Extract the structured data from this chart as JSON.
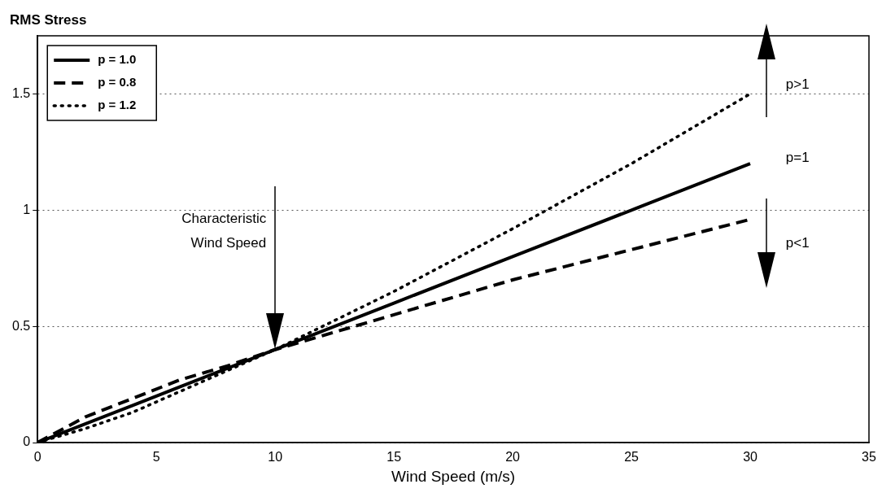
{
  "chart_data": {
    "type": "line",
    "xlabel": "Wind Speed (m/s)",
    "ylabel": "RMS Stress",
    "x": [
      0,
      2,
      4,
      6,
      8,
      10,
      12,
      15,
      20,
      25,
      30
    ],
    "series": [
      {
        "name": "p = 1.0",
        "color": "#000000",
        "line_style": "solid",
        "values": [
          0,
          0.08,
          0.16,
          0.24,
          0.32,
          0.4,
          0.48,
          0.6,
          0.8,
          1.0,
          1.2
        ]
      },
      {
        "name": "p = 0.8",
        "color": "#000000",
        "line_style": "dashed",
        "values": [
          0,
          0.11,
          0.19,
          0.27,
          0.33,
          0.4,
          0.46,
          0.55,
          0.7,
          0.83,
          0.96
        ]
      },
      {
        "name": "p = 1.2",
        "color": "#000000",
        "line_style": "dotted",
        "values": [
          0,
          0.06,
          0.13,
          0.22,
          0.31,
          0.4,
          0.5,
          0.65,
          0.92,
          1.2,
          1.5
        ]
      }
    ],
    "xlim": [
      0,
      35
    ],
    "xticks": [
      0,
      5,
      10,
      15,
      20,
      25,
      30,
      35
    ],
    "ylim": [
      0,
      1.75
    ],
    "yticks": [
      0,
      0.5,
      1,
      1.5
    ],
    "grid": "y",
    "legend": "top left",
    "marker": "none",
    "annotations": [
      "Characteristic\nWind Speed",
      "p>1",
      "p=1",
      "p<1"
    ]
  }
}
